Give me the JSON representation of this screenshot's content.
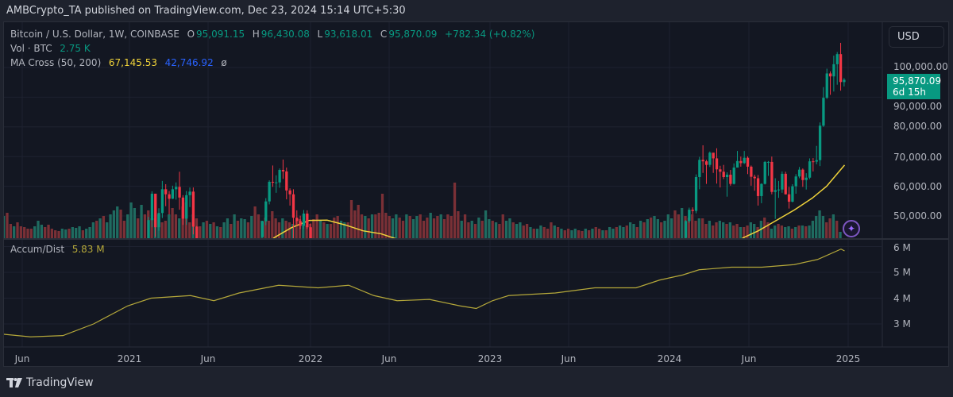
{
  "header": {
    "published": "AMBCrypto_TA published on TradingView.com, Dec 23, 2024 15:14 UTC+5:30"
  },
  "legend": {
    "symbol": "Bitcoin / U.S. Dollar, 1W, COINBASE",
    "o_label": "O",
    "o": "95,091.15",
    "h_label": "H",
    "h": "96,430.08",
    "l_label": "L",
    "l": "93,618.01",
    "c_label": "C",
    "c": "95,870.09",
    "change": "+782.34 (+0.82%)",
    "vol_label": "Vol · BTC",
    "vol": "2.75 K",
    "ma_label": "MA Cross (50, 200)",
    "ma50": "67,145.53",
    "ma200": "42,746.92",
    "ma_extra": "ø",
    "ad_label": "Accum/Dist",
    "ad": "5.83 M"
  },
  "currency_button": "USD",
  "price_tag": {
    "price": "95,870.09",
    "countdown": "6d 15h"
  },
  "price_axis": [
    "100,000.00",
    "90,000.00",
    "80,000.00",
    "70,000.00",
    "60,000.00",
    "50,000.00"
  ],
  "ad_axis": [
    "6 M",
    "5 M",
    "4 M",
    "3 M"
  ],
  "time_axis": [
    "Jun",
    "2021",
    "Jun",
    "2022",
    "Jun",
    "2023",
    "Jun",
    "2024",
    "Jun",
    "2025"
  ],
  "footer": {
    "brand": "TradingView"
  },
  "colors": {
    "up": "#089981",
    "down": "#f23645",
    "ma50": "#f0d33a",
    "ma200": "#2962ff",
    "ad": "#b5a83a"
  },
  "chart_data": {
    "type": "candlestick",
    "interval": "1W",
    "week_step_years": 0.01916,
    "candle_segments": [
      {
        "start": 2021.087,
        "ohlc": [
          [
            33500,
            40950,
            33400,
            38900
          ],
          [
            38900,
            49700,
            37400,
            48600
          ],
          [
            48600,
            58300,
            46200,
            57500
          ],
          [
            57500,
            57500,
            43000,
            46200
          ],
          [
            46200,
            52600,
            45000,
            51000
          ],
          [
            51000,
            61800,
            49300,
            59000
          ],
          [
            59000,
            60700,
            53300,
            57300
          ],
          [
            57300,
            58400,
            50500,
            55800
          ],
          [
            55800,
            60200,
            55700,
            59000
          ],
          [
            59000,
            61300,
            55500,
            59800
          ],
          [
            59800,
            64900,
            52100,
            56200
          ],
          [
            56200,
            57000,
            47000,
            49100
          ],
          [
            49100,
            58400,
            47000,
            57000
          ],
          [
            57000,
            59600,
            53000,
            58200
          ],
          [
            58200,
            59600,
            43800,
            46400
          ],
          [
            46400,
            46600,
            30000,
            34700
          ]
        ]
      },
      {
        "start": 2021.74,
        "ohlc": [
          [
            42900,
            48400,
            42800,
            48200
          ],
          [
            48200,
            56000,
            46900,
            54900
          ],
          [
            54900,
            62000,
            53900,
            61500
          ],
          [
            61500,
            67000,
            59800,
            61300
          ],
          [
            61300,
            63700,
            57800,
            61300
          ],
          [
            61300,
            66000,
            59500,
            65500
          ],
          [
            65500,
            69000,
            62500,
            65000
          ],
          [
            65000,
            66300,
            55600,
            58600
          ],
          [
            58600,
            59300,
            53500,
            57300
          ],
          [
            57300,
            59000,
            42000,
            49400
          ],
          [
            49400,
            51900,
            46700,
            48300
          ],
          [
            48300,
            50100,
            45600,
            46700
          ],
          [
            46700,
            52000,
            45600,
            50800
          ],
          [
            50800,
            51900,
            45600,
            46200
          ],
          [
            46200,
            47500,
            40500,
            41800
          ]
        ]
      },
      {
        "start": 2024.096,
        "ohlc": [
          [
            42600,
            48600,
            42300,
            48300
          ],
          [
            48300,
            52800,
            47700,
            52100
          ],
          [
            52100,
            52900,
            50600,
            51700
          ],
          [
            51700,
            64000,
            50900,
            63100
          ],
          [
            63100,
            69900,
            59000,
            68900
          ],
          [
            68900,
            73800,
            64500,
            68400
          ],
          [
            68400,
            68900,
            60800,
            67200
          ],
          [
            67200,
            71700,
            66500,
            71300
          ],
          [
            71300,
            71300,
            64500,
            69400
          ],
          [
            69400,
            72800,
            60900,
            65700
          ],
          [
            65700,
            66900,
            59600,
            64900
          ],
          [
            64900,
            67200,
            62400,
            63100
          ],
          [
            63100,
            64700,
            56500,
            63900
          ],
          [
            63900,
            65500,
            60200,
            60800
          ],
          [
            60800,
            67700,
            60600,
            66300
          ],
          [
            66300,
            71900,
            66300,
            68500
          ],
          [
            68500,
            70000,
            66600,
            67800
          ],
          [
            67800,
            71900,
            67500,
            69600
          ],
          [
            69600,
            70100,
            64100,
            66600
          ],
          [
            66600,
            67000,
            60200,
            63200
          ],
          [
            63200,
            63900,
            58500,
            62700
          ],
          [
            62700,
            63800,
            53500,
            56700
          ],
          [
            56700,
            61000,
            54300,
            60800
          ],
          [
            60800,
            68500,
            60600,
            68200
          ],
          [
            68200,
            68500,
            63500,
            68200
          ],
          [
            68200,
            70000,
            57300,
            58100
          ],
          [
            58100,
            62700,
            49000,
            58700
          ],
          [
            58700,
            61800,
            56100,
            58900
          ],
          [
            58900,
            65000,
            57800,
            64200
          ],
          [
            64200,
            64900,
            57200,
            57300
          ],
          [
            57300,
            59800,
            52500,
            54800
          ],
          [
            54800,
            60700,
            54600,
            60000
          ],
          [
            60000,
            64100,
            57500,
            63300
          ],
          [
            63300,
            66500,
            62700,
            65600
          ],
          [
            65600,
            66000,
            59800,
            62100
          ],
          [
            62100,
            64400,
            58900,
            62900
          ],
          [
            62900,
            69400,
            62400,
            68400
          ],
          [
            68400,
            69500,
            65000,
            68300
          ],
          [
            68300,
            73600,
            67400,
            68800
          ],
          [
            68800,
            81500,
            66800,
            80400
          ],
          [
            80400,
            93400,
            80000,
            89800
          ],
          [
            89800,
            99600,
            89400,
            98000
          ],
          [
            98000,
            98700,
            90800,
            97000
          ],
          [
            97000,
            104000,
            91900,
            101100
          ],
          [
            101100,
            105200,
            94200,
            104500
          ],
          [
            104500,
            108300,
            92200,
            95100
          ],
          [
            95091.15,
            96430.08,
            93618.01,
            95870.09
          ]
        ]
      }
    ],
    "volume": {
      "start": 2020.3,
      "values": [
        28,
        -32,
        -18,
        15,
        -20,
        -15,
        -14,
        -12,
        -12,
        15,
        22,
        17,
        -14,
        -17,
        -12,
        -10,
        -9,
        12,
        11,
        -12,
        14,
        13,
        15,
        -10,
        12,
        14,
        20,
        -22,
        25,
        -28,
        20,
        30,
        35,
        40,
        -36,
        -22,
        30,
        45,
        38,
        -25,
        42,
        -30,
        -35,
        -25,
        25,
        30,
        -20,
        -22,
        30,
        -38,
        -30,
        25,
        -40,
        -45,
        -20,
        30,
        -25,
        -15,
        20,
        -22,
        18,
        -20,
        15,
        -14,
        20,
        25,
        -18,
        30,
        -22,
        25,
        24,
        -20,
        28,
        -40,
        -30,
        22,
        -26,
        -22,
        -34,
        -25,
        -20,
        25,
        -22,
        -20,
        18,
        -22,
        -24,
        20,
        -16,
        -18,
        -24,
        -30,
        22,
        -20,
        18,
        -18,
        -26,
        -28,
        22,
        20,
        -20,
        -48,
        -35,
        -42,
        -30,
        28,
        -25,
        30,
        -30,
        -32,
        -56,
        -32,
        -28,
        25,
        30,
        -26,
        -22,
        30,
        -28,
        24,
        28,
        -30,
        -22,
        -26,
        32,
        -25,
        -28,
        30,
        -24,
        -30,
        -28,
        -70,
        -34,
        22,
        -30,
        -20,
        22,
        -18,
        26,
        -22,
        35,
        24,
        -22,
        20,
        -18,
        -30,
        22,
        25,
        -20,
        18,
        20,
        -16,
        -18,
        14,
        -12,
        12,
        16,
        -14,
        -12,
        -20,
        16,
        -14,
        12,
        -10,
        -12,
        10,
        12,
        -10,
        -9,
        12,
        -10,
        12,
        -14,
        -12,
        10,
        -10,
        14,
        12,
        -14,
        16,
        14,
        -16,
        20,
        18,
        -14,
        22,
        -20,
        24,
        -26,
        28,
        24,
        -20,
        22,
        30,
        25,
        -35,
        -30,
        38,
        -28,
        -26,
        -30,
        -22,
        25,
        -25,
        -18,
        22,
        -16,
        -20,
        22,
        20,
        -18,
        20,
        -16,
        -18,
        14,
        -14,
        -16,
        20,
        18,
        -14,
        22,
        -26,
        -20,
        12,
        16,
        -18,
        -16,
        14,
        15,
        -12,
        14,
        -16,
        16,
        -15,
        16,
        22,
        28,
        35,
        28,
        -20,
        -25,
        30,
        -22,
        8
      ]
    },
    "ma50": [
      [
        2021.8,
        42500
      ],
      [
        2021.9,
        46000
      ],
      [
        2022.0,
        48500
      ],
      [
        2022.1,
        48600
      ],
      [
        2022.2,
        47000
      ],
      [
        2022.3,
        45000
      ],
      [
        2022.4,
        44000
      ],
      [
        2022.45,
        43000
      ],
      [
        2022.5,
        42000
      ],
      [
        2024.41,
        42500
      ],
      [
        2024.5,
        45000
      ],
      [
        2024.6,
        48500
      ],
      [
        2024.7,
        52000
      ],
      [
        2024.8,
        56000
      ],
      [
        2024.88,
        60000
      ],
      [
        2024.95,
        65000
      ],
      [
        2024.98,
        67145.53
      ]
    ],
    "accum_dist_millions": [
      [
        2020.3,
        2.6
      ],
      [
        2020.45,
        2.5
      ],
      [
        2020.63,
        2.55
      ],
      [
        2020.8,
        3.0
      ],
      [
        2020.99,
        3.7
      ],
      [
        2021.12,
        4.0
      ],
      [
        2021.34,
        4.1
      ],
      [
        2021.47,
        3.9
      ],
      [
        2021.61,
        4.2
      ],
      [
        2021.83,
        4.5
      ],
      [
        2022.05,
        4.4
      ],
      [
        2022.22,
        4.5
      ],
      [
        2022.36,
        4.1
      ],
      [
        2022.49,
        3.9
      ],
      [
        2022.67,
        3.95
      ],
      [
        2022.84,
        3.7
      ],
      [
        2022.93,
        3.6
      ],
      [
        2023.02,
        3.9
      ],
      [
        2023.11,
        4.1
      ],
      [
        2023.37,
        4.2
      ],
      [
        2023.59,
        4.4
      ],
      [
        2023.82,
        4.4
      ],
      [
        2023.95,
        4.7
      ],
      [
        2024.08,
        4.9
      ],
      [
        2024.17,
        5.1
      ],
      [
        2024.35,
        5.2
      ],
      [
        2024.52,
        5.2
      ],
      [
        2024.7,
        5.3
      ],
      [
        2024.83,
        5.5
      ],
      [
        2024.96,
        5.9
      ],
      [
        2024.98,
        5.83
      ]
    ],
    "price_ylim": [
      42500,
      110000
    ],
    "ad_ylim": [
      2.2,
      6.2
    ]
  }
}
